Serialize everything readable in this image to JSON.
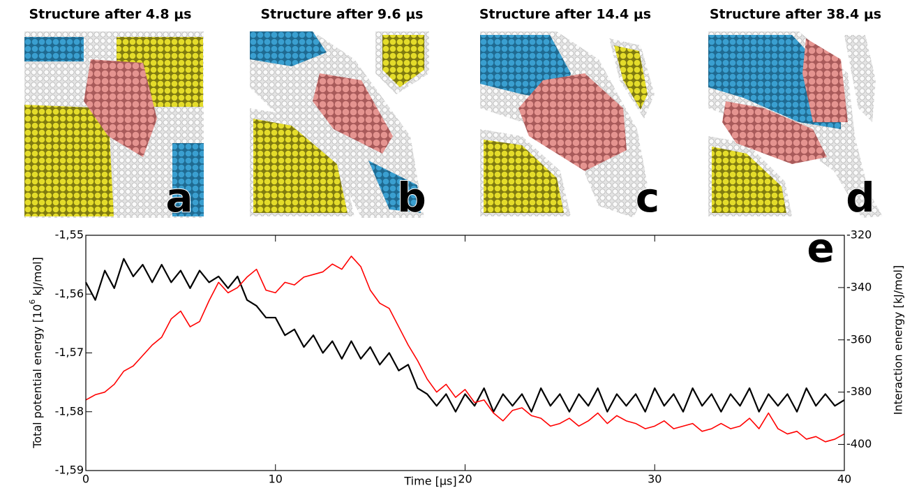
{
  "panels": [
    {
      "title": "Structure after 4.8 μs",
      "label": "a"
    },
    {
      "title": "Structure after 9.6 μs",
      "label": "b"
    },
    {
      "title": "Structure after 14.4 μs",
      "label": "c"
    },
    {
      "title": "Structure after 38.4 μs",
      "label": "d"
    }
  ],
  "chart_data": {
    "type": "line",
    "panel_label": "e",
    "xlabel": "Time [μs]",
    "ylabel": [
      "Total potential energy [10",
      "6",
      " kJ/mol]"
    ],
    "y2label": "Interaction energy [kJ/mol]",
    "xlim": [
      0,
      40
    ],
    "xticks": [
      0,
      10,
      20,
      30,
      40
    ],
    "ylim": [
      -1.59,
      -1.55
    ],
    "yticks": [
      {
        "value": -1.59,
        "label": "-1,59"
      },
      {
        "value": -1.58,
        "label": "-1,58"
      },
      {
        "value": -1.57,
        "label": "-1,57"
      },
      {
        "value": -1.56,
        "label": "-1,56"
      },
      {
        "value": -1.55,
        "label": "-1,55"
      }
    ],
    "y2lim": [
      -410,
      -320
    ],
    "y2ticks": [
      -400,
      -380,
      -360,
      -340,
      -320
    ],
    "x": [
      0,
      0.5,
      1,
      1.5,
      2,
      2.5,
      3,
      3.5,
      4,
      4.5,
      5,
      5.5,
      6,
      6.5,
      7,
      7.5,
      8,
      8.5,
      9,
      9.5,
      10,
      10.5,
      11,
      11.5,
      12,
      12.5,
      13,
      13.5,
      14,
      14.5,
      15,
      15.5,
      16,
      16.5,
      17,
      17.5,
      18,
      18.5,
      19,
      19.5,
      20,
      20.5,
      21,
      21.5,
      22,
      22.5,
      23,
      23.5,
      24,
      24.5,
      25,
      25.5,
      26,
      26.5,
      27,
      27.5,
      28,
      28.5,
      29,
      29.5,
      30,
      30.5,
      31,
      31.5,
      32,
      32.5,
      33,
      33.5,
      34,
      34.5,
      35,
      35.5,
      36,
      36.5,
      37,
      37.5,
      38,
      38.5,
      39,
      39.5,
      40
    ],
    "series": [
      {
        "color": "#000000",
        "values": [
          -1.558,
          -1.561,
          -1.556,
          -1.559,
          -1.554,
          -1.557,
          -1.555,
          -1.558,
          -1.555,
          -1.558,
          -1.556,
          -1.559,
          -1.556,
          -1.558,
          -1.557,
          -1.559,
          -1.557,
          -1.561,
          -1.562,
          -1.564,
          -1.564,
          -1.567,
          -1.566,
          -1.569,
          -1.567,
          -1.57,
          -1.568,
          -1.571,
          -1.568,
          -1.571,
          -1.569,
          -1.572,
          -1.57,
          -1.573,
          -1.572,
          -1.576,
          -1.577,
          -1.579,
          -1.577,
          -1.58,
          -1.577,
          -1.579,
          -1.576,
          -1.58,
          -1.577,
          -1.579,
          -1.577,
          -1.58,
          -1.576,
          -1.579,
          -1.577,
          -1.58,
          -1.577,
          -1.579,
          -1.576,
          -1.58,
          -1.577,
          -1.579,
          -1.577,
          -1.58,
          -1.576,
          -1.579,
          -1.577,
          -1.58,
          -1.576,
          -1.579,
          -1.577,
          -1.58,
          -1.577,
          -1.579,
          -1.576,
          -1.58,
          -1.577,
          -1.579,
          -1.577,
          -1.58,
          -1.576,
          -1.579,
          -1.577,
          -1.579,
          -1.578
        ]
      },
      {
        "color": "#ff0000",
        "axis": "y2",
        "values": [
          -383,
          -381,
          -380,
          -377,
          -372,
          -370,
          -366,
          -362,
          -359,
          -352,
          -349,
          -355,
          -353,
          -345,
          -338,
          -342,
          -340,
          -336,
          -333,
          -341,
          -342,
          -338,
          -339,
          -336,
          -335,
          -334,
          -331,
          -333,
          -328,
          -332,
          -341,
          -346,
          -348,
          -355,
          -362,
          -368,
          -375,
          -380,
          -377,
          -382,
          -379,
          -384,
          -383,
          -388,
          -391,
          -387,
          -386,
          -389,
          -390,
          -393,
          -392,
          -390,
          -393,
          -391,
          -388,
          -392,
          -389,
          -391,
          -392,
          -394,
          -393,
          -391,
          -394,
          -393,
          -392,
          -395,
          -394,
          -392,
          -394,
          -393,
          -390,
          -394,
          -388,
          -394,
          -396,
          -395,
          -398,
          -397,
          -399,
          -398,
          -396
        ]
      }
    ]
  }
}
